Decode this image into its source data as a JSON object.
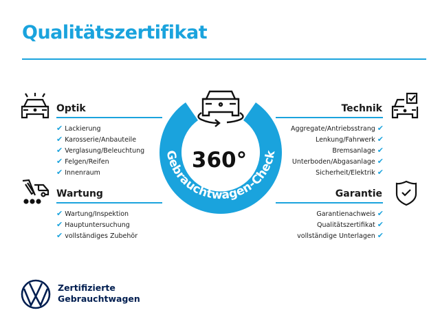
{
  "title": "Qualitätszertifikat",
  "colors": {
    "accent": "#1aa3dd",
    "brand": "#001e50"
  },
  "center": {
    "big": "360°",
    "arc_text": "Gebrauchtwagen-Check",
    "icon": "car-rotate-icon"
  },
  "sections": {
    "optik": {
      "title": "Optik",
      "icon": "car-lights-icon",
      "items": [
        "Lackierung",
        "Karosserie/Anbauteile",
        "Verglasung/Beleuchtung",
        "Felgen/Reifen",
        "Innenraum"
      ]
    },
    "wartung": {
      "title": "Wartung",
      "icon": "service-cart-icon",
      "items": [
        "Wartung/Inspektion",
        "Hauptuntersuchung",
        "vollständiges Zubehör"
      ]
    },
    "technik": {
      "title": "Technik",
      "icon": "car-checkbox-icon",
      "items": [
        "Aggregate/Antriebsstrang",
        "Lenkung/Fahrwerk",
        "Bremsanlage",
        "Unterboden/Abgasanlage",
        "Sicherheit/Elektrik"
      ]
    },
    "garantie": {
      "title": "Garantie",
      "icon": "shield-check-icon",
      "items": [
        "Garantienachweis",
        "Qualitätszertifikat",
        "vollständige Unterlagen"
      ]
    }
  },
  "checkmark": "✔",
  "brand": {
    "line1": "Zertifizierte",
    "line2": "Gebrauchtwagen",
    "logo": "vw-logo"
  }
}
